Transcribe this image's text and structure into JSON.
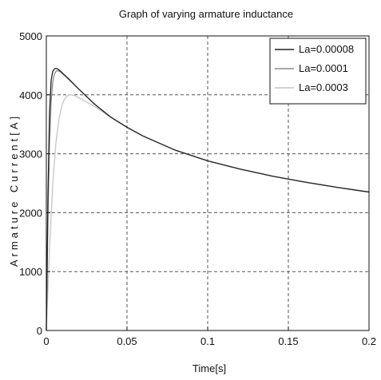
{
  "chart_data": {
    "type": "line",
    "title": "Graph of varying armature inductance",
    "xlabel": "Time[s]",
    "ylabel": "Armature Current[A]",
    "xlim": [
      0,
      0.2
    ],
    "ylim": [
      0,
      5000
    ],
    "xticks": [
      0,
      0.05,
      0.1,
      0.15,
      0.2
    ],
    "xtick_labels": [
      "0",
      "0.05",
      "0.1",
      "0.15",
      "0.2"
    ],
    "yticks": [
      0,
      1000,
      2000,
      3000,
      4000,
      5000
    ],
    "ytick_labels": [
      "0",
      "1000",
      "2000",
      "3000",
      "4000",
      "5000"
    ],
    "grid": true,
    "legend_position": "top-right",
    "series": [
      {
        "name": "La=0.00008",
        "color": "#222222",
        "x": [
          0,
          0.001,
          0.002,
          0.003,
          0.004,
          0.005,
          0.006,
          0.007,
          0.008,
          0.01,
          0.012,
          0.015,
          0.02,
          0.03,
          0.04,
          0.05,
          0.06,
          0.08,
          0.1,
          0.12,
          0.14,
          0.16,
          0.18,
          0.2
        ],
        "y": [
          0,
          2300,
          3700,
          4250,
          4400,
          4440,
          4450,
          4440,
          4420,
          4370,
          4320,
          4240,
          4100,
          3840,
          3620,
          3450,
          3300,
          3060,
          2880,
          2740,
          2620,
          2520,
          2430,
          2350
        ]
      },
      {
        "name": "La=0.0001",
        "color": "#8a8a8a",
        "x": [
          0,
          0.001,
          0.002,
          0.003,
          0.004,
          0.005,
          0.006,
          0.007,
          0.008,
          0.009,
          0.01,
          0.012,
          0.015,
          0.02,
          0.03,
          0.04,
          0.05,
          0.06,
          0.08,
          0.1,
          0.12,
          0.14,
          0.16,
          0.18,
          0.2
        ],
        "y": [
          0,
          1900,
          3200,
          3900,
          4220,
          4350,
          4400,
          4410,
          4400,
          4385,
          4360,
          4310,
          4230,
          4100,
          3840,
          3620,
          3450,
          3300,
          3060,
          2880,
          2740,
          2620,
          2520,
          2430,
          2350
        ]
      },
      {
        "name": "La=0.0003",
        "color": "#c4c4c4",
        "x": [
          0,
          0.002,
          0.004,
          0.006,
          0.008,
          0.01,
          0.012,
          0.014,
          0.016,
          0.018,
          0.02,
          0.025,
          0.03,
          0.04,
          0.05,
          0.06,
          0.08,
          0.1,
          0.12,
          0.14,
          0.16,
          0.18,
          0.2
        ],
        "y": [
          0,
          1400,
          2500,
          3200,
          3620,
          3850,
          3960,
          4000,
          4000,
          3980,
          3950,
          3880,
          3800,
          3620,
          3450,
          3300,
          3060,
          2880,
          2740,
          2620,
          2520,
          2430,
          2350
        ]
      }
    ]
  }
}
